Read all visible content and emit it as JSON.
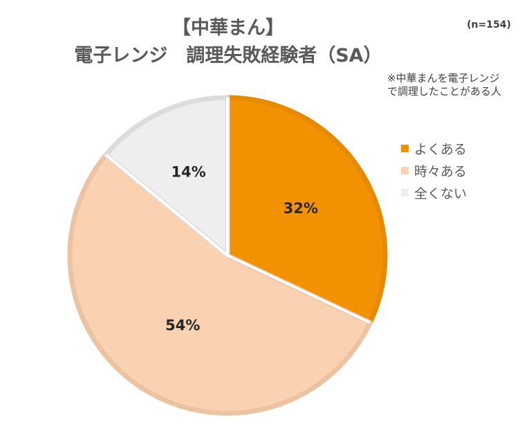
{
  "title": {
    "line1": "【中華まん】",
    "line2": "電子レンジ　調理失敗経験者（SA）"
  },
  "sample_size": "(n=154)",
  "note": "※中華まんを電子レンジで調理したことがある人",
  "chart_data": {
    "type": "pie",
    "title": "【中華まん】 電子レンジ　調理失敗経験者（SA）",
    "slices": [
      {
        "label": "よくある",
        "value": 32,
        "display": "32%",
        "color": "#F39200",
        "border": "#E68A00"
      },
      {
        "label": "時々ある",
        "value": 54,
        "display": "54%",
        "color": "#FAD2B2",
        "border": "#EBC3A3"
      },
      {
        "label": "全くない",
        "value": 14,
        "display": "14%",
        "color": "#EEEEEF",
        "border": "#DCDCDE"
      }
    ],
    "legend_position": "right",
    "start": "12 o'clock",
    "direction": "clockwise"
  }
}
